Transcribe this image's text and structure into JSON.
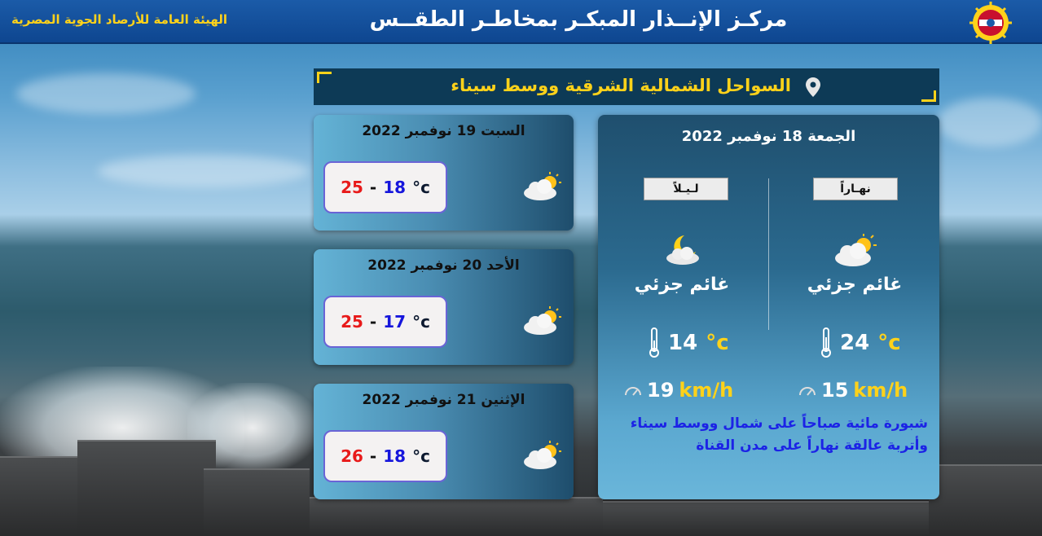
{
  "header": {
    "title": "مركـز الإنــذار المبكـر بمخاطـر الطقــس",
    "organization": "الهيئة العامة للأرصاد الجوية المصرية",
    "logo_icon": "ema-sun-logo-icon"
  },
  "region": {
    "name": "السواحل الشمالية الشرقية ووسط سيناء",
    "icon": "location-pin-icon"
  },
  "today": {
    "date": "الجمعة 18 نوفمبر 2022",
    "day": {
      "label": "نهـاراً",
      "condition": "غائم جزئي",
      "icon": "partly-cloudy-day-icon",
      "temperature": "24",
      "temp_unit": "°c",
      "wind_speed": "15",
      "wind_unit": "km/h"
    },
    "night": {
      "label": "لـيـلاً",
      "condition": "غائم جزئي",
      "icon": "partly-cloudy-night-icon",
      "temperature": "14",
      "temp_unit": "°c",
      "wind_speed": "19",
      "wind_unit": "km/h"
    },
    "warning": "شبورة مائية صباحاً على شمال ووسط سيناء وأتربة عالقة نهاراً على مدن القناة"
  },
  "forecast": [
    {
      "date": "السبت 19 نوفمبر 2022",
      "unit": "°c",
      "min": "18",
      "max": "25",
      "icon": "partly-cloudy-icon"
    },
    {
      "date": "الأحد 20 نوفمبر 2022",
      "unit": "°c",
      "min": "17",
      "max": "25",
      "icon": "partly-cloudy-icon"
    },
    {
      "date": "الإثنين 21 نوفمبر 2022",
      "unit": "°c",
      "min": "18",
      "max": "26",
      "icon": "partly-cloudy-icon"
    }
  ],
  "colors": {
    "header_bg": "#1b5ba8",
    "accent_yellow": "#ffd21a",
    "min_temp": "#1616dc",
    "max_temp": "#e81a1a",
    "warning_text": "#1c23e6"
  }
}
